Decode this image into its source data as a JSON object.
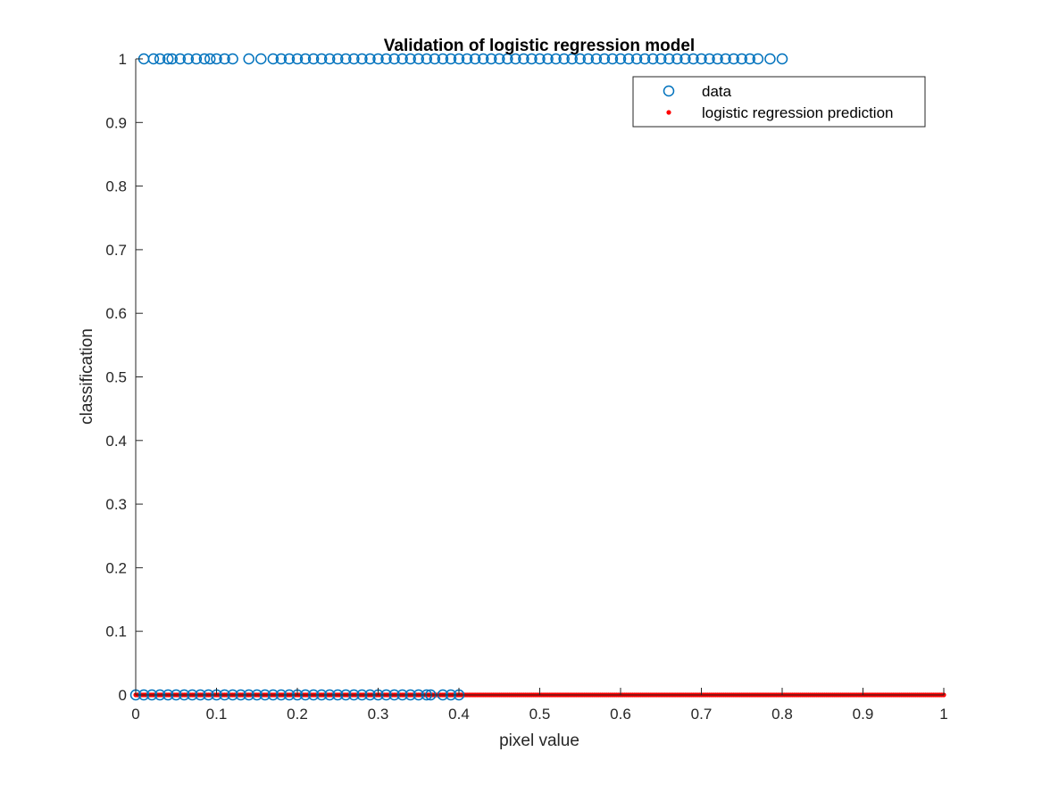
{
  "chart_data": {
    "type": "scatter",
    "title": "Validation of logistic regression model",
    "xlabel": "pixel value",
    "ylabel": "classification",
    "xlim": [
      0,
      1
    ],
    "ylim": [
      0,
      1
    ],
    "xticks": [
      "0",
      "0.1",
      "0.2",
      "0.3",
      "0.4",
      "0.5",
      "0.6",
      "0.7",
      "0.8",
      "0.9",
      "1"
    ],
    "yticks": [
      "0",
      "0.1",
      "0.2",
      "0.3",
      "0.4",
      "0.5",
      "0.6",
      "0.7",
      "0.8",
      "0.9",
      "1"
    ],
    "grid": false,
    "legend_position": "top-right",
    "series": [
      {
        "name": "data",
        "marker": "open-circle",
        "color": "#0072BD",
        "points": [
          {
            "x": 0.0,
            "y": 0
          },
          {
            "x": 0.01,
            "y": 0
          },
          {
            "x": 0.02,
            "y": 0
          },
          {
            "x": 0.03,
            "y": 0
          },
          {
            "x": 0.04,
            "y": 0
          },
          {
            "x": 0.05,
            "y": 0
          },
          {
            "x": 0.06,
            "y": 0
          },
          {
            "x": 0.07,
            "y": 0
          },
          {
            "x": 0.08,
            "y": 0
          },
          {
            "x": 0.09,
            "y": 0
          },
          {
            "x": 0.1,
            "y": 0
          },
          {
            "x": 0.11,
            "y": 0
          },
          {
            "x": 0.12,
            "y": 0
          },
          {
            "x": 0.13,
            "y": 0
          },
          {
            "x": 0.14,
            "y": 0
          },
          {
            "x": 0.15,
            "y": 0
          },
          {
            "x": 0.16,
            "y": 0
          },
          {
            "x": 0.17,
            "y": 0
          },
          {
            "x": 0.18,
            "y": 0
          },
          {
            "x": 0.19,
            "y": 0
          },
          {
            "x": 0.2,
            "y": 0
          },
          {
            "x": 0.21,
            "y": 0
          },
          {
            "x": 0.22,
            "y": 0
          },
          {
            "x": 0.23,
            "y": 0
          },
          {
            "x": 0.24,
            "y": 0
          },
          {
            "x": 0.25,
            "y": 0
          },
          {
            "x": 0.26,
            "y": 0
          },
          {
            "x": 0.27,
            "y": 0
          },
          {
            "x": 0.28,
            "y": 0
          },
          {
            "x": 0.29,
            "y": 0
          },
          {
            "x": 0.3,
            "y": 0
          },
          {
            "x": 0.31,
            "y": 0
          },
          {
            "x": 0.32,
            "y": 0
          },
          {
            "x": 0.33,
            "y": 0
          },
          {
            "x": 0.34,
            "y": 0
          },
          {
            "x": 0.35,
            "y": 0
          },
          {
            "x": 0.36,
            "y": 0
          },
          {
            "x": 0.365,
            "y": 0
          },
          {
            "x": 0.38,
            "y": 0
          },
          {
            "x": 0.39,
            "y": 0
          },
          {
            "x": 0.4,
            "y": 0
          },
          {
            "x": 0.01,
            "y": 1
          },
          {
            "x": 0.022,
            "y": 1
          },
          {
            "x": 0.03,
            "y": 1
          },
          {
            "x": 0.04,
            "y": 1
          },
          {
            "x": 0.045,
            "y": 1
          },
          {
            "x": 0.055,
            "y": 1
          },
          {
            "x": 0.065,
            "y": 1
          },
          {
            "x": 0.075,
            "y": 1
          },
          {
            "x": 0.085,
            "y": 1
          },
          {
            "x": 0.092,
            "y": 1
          },
          {
            "x": 0.1,
            "y": 1
          },
          {
            "x": 0.11,
            "y": 1
          },
          {
            "x": 0.12,
            "y": 1
          },
          {
            "x": 0.14,
            "y": 1
          },
          {
            "x": 0.155,
            "y": 1
          },
          {
            "x": 0.17,
            "y": 1
          },
          {
            "x": 0.18,
            "y": 1
          },
          {
            "x": 0.19,
            "y": 1
          },
          {
            "x": 0.2,
            "y": 1
          },
          {
            "x": 0.21,
            "y": 1
          },
          {
            "x": 0.22,
            "y": 1
          },
          {
            "x": 0.23,
            "y": 1
          },
          {
            "x": 0.24,
            "y": 1
          },
          {
            "x": 0.25,
            "y": 1
          },
          {
            "x": 0.26,
            "y": 1
          },
          {
            "x": 0.27,
            "y": 1
          },
          {
            "x": 0.28,
            "y": 1
          },
          {
            "x": 0.29,
            "y": 1
          },
          {
            "x": 0.3,
            "y": 1
          },
          {
            "x": 0.31,
            "y": 1
          },
          {
            "x": 0.32,
            "y": 1
          },
          {
            "x": 0.33,
            "y": 1
          },
          {
            "x": 0.34,
            "y": 1
          },
          {
            "x": 0.35,
            "y": 1
          },
          {
            "x": 0.36,
            "y": 1
          },
          {
            "x": 0.37,
            "y": 1
          },
          {
            "x": 0.38,
            "y": 1
          },
          {
            "x": 0.39,
            "y": 1
          },
          {
            "x": 0.4,
            "y": 1
          },
          {
            "x": 0.41,
            "y": 1
          },
          {
            "x": 0.42,
            "y": 1
          },
          {
            "x": 0.43,
            "y": 1
          },
          {
            "x": 0.44,
            "y": 1
          },
          {
            "x": 0.45,
            "y": 1
          },
          {
            "x": 0.46,
            "y": 1
          },
          {
            "x": 0.47,
            "y": 1
          },
          {
            "x": 0.48,
            "y": 1
          },
          {
            "x": 0.49,
            "y": 1
          },
          {
            "x": 0.5,
            "y": 1
          },
          {
            "x": 0.51,
            "y": 1
          },
          {
            "x": 0.52,
            "y": 1
          },
          {
            "x": 0.53,
            "y": 1
          },
          {
            "x": 0.54,
            "y": 1
          },
          {
            "x": 0.55,
            "y": 1
          },
          {
            "x": 0.56,
            "y": 1
          },
          {
            "x": 0.57,
            "y": 1
          },
          {
            "x": 0.58,
            "y": 1
          },
          {
            "x": 0.59,
            "y": 1
          },
          {
            "x": 0.6,
            "y": 1
          },
          {
            "x": 0.61,
            "y": 1
          },
          {
            "x": 0.62,
            "y": 1
          },
          {
            "x": 0.63,
            "y": 1
          },
          {
            "x": 0.64,
            "y": 1
          },
          {
            "x": 0.65,
            "y": 1
          },
          {
            "x": 0.66,
            "y": 1
          },
          {
            "x": 0.67,
            "y": 1
          },
          {
            "x": 0.68,
            "y": 1
          },
          {
            "x": 0.69,
            "y": 1
          },
          {
            "x": 0.7,
            "y": 1
          },
          {
            "x": 0.71,
            "y": 1
          },
          {
            "x": 0.72,
            "y": 1
          },
          {
            "x": 0.73,
            "y": 1
          },
          {
            "x": 0.74,
            "y": 1
          },
          {
            "x": 0.75,
            "y": 1
          },
          {
            "x": 0.76,
            "y": 1
          },
          {
            "x": 0.77,
            "y": 1
          },
          {
            "x": 0.785,
            "y": 1
          },
          {
            "x": 0.8,
            "y": 1
          }
        ]
      },
      {
        "name": "logistic regression prediction",
        "marker": "dot",
        "color": "#FF0000",
        "x_range": [
          0,
          1
        ],
        "y_value": 0
      }
    ]
  }
}
